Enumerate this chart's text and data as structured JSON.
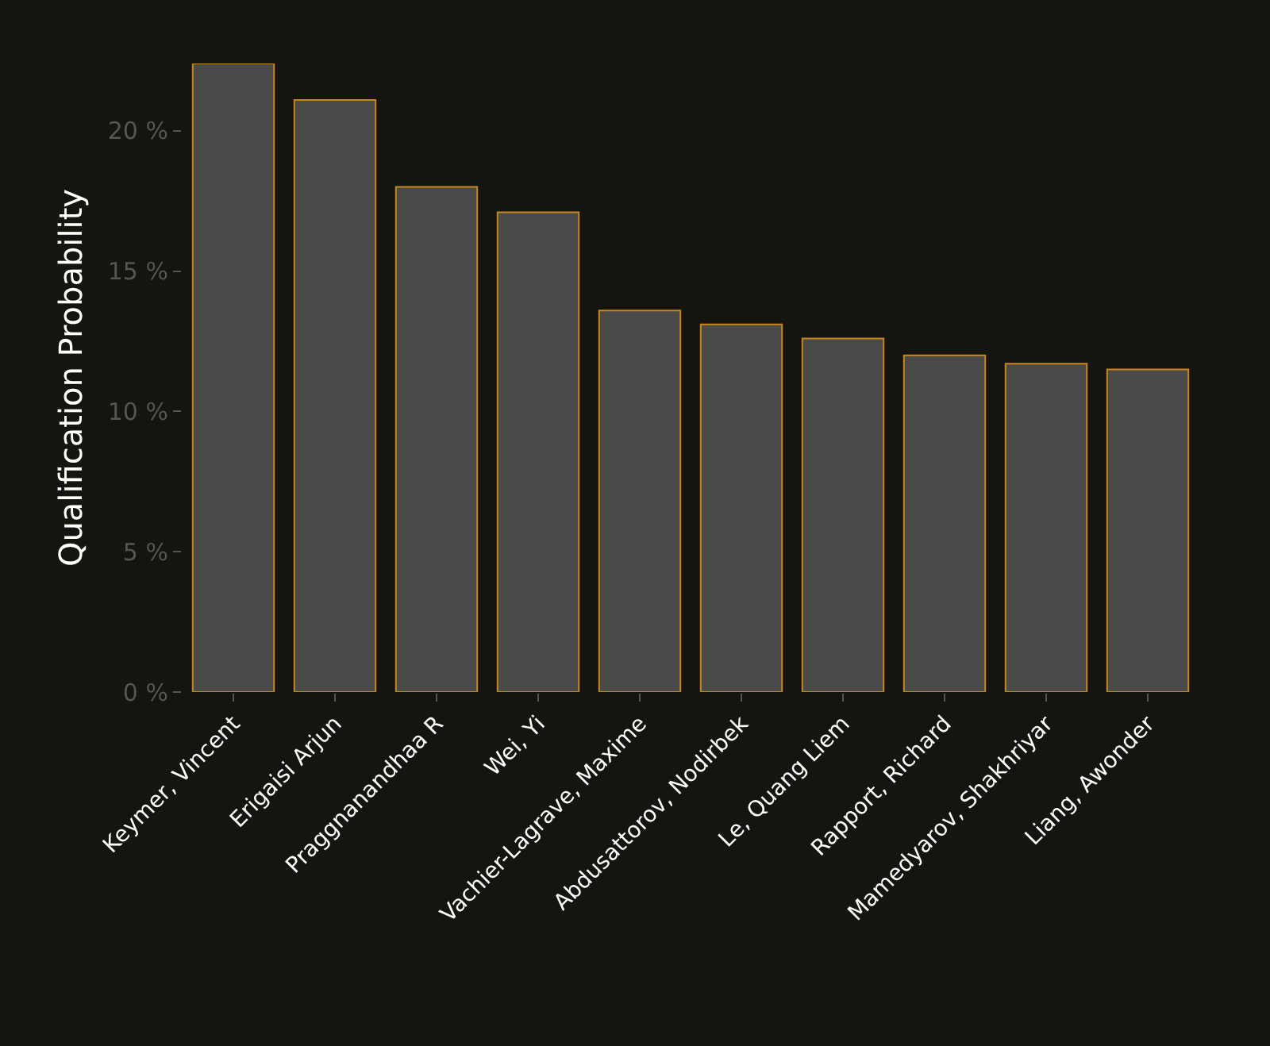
{
  "chart_data": {
    "type": "bar",
    "ylabel": "Qualification Probability",
    "categories": [
      "Keymer, Vincent",
      "Erigaisi Arjun",
      "Praggnanandhaa R",
      "Wei, Yi",
      "Vachier-Lagrave, Maxime",
      "Abdusattorov, Nodirbek",
      "Le, Quang Liem",
      "Rapport, Richard",
      "Mamedyarov, Shakhriyar",
      "Liang, Awonder"
    ],
    "values": [
      22.4,
      21.1,
      18.0,
      17.1,
      13.6,
      13.1,
      12.6,
      12.0,
      11.7,
      11.5
    ],
    "color": "#4a4a4a",
    "ylim": [
      0,
      22.4
    ],
    "yticks": [
      {
        "value": 0,
        "label": "0 %"
      },
      {
        "value": 5,
        "label": "5 %"
      },
      {
        "value": 10,
        "label": "10 %"
      },
      {
        "value": 15,
        "label": "15 %"
      },
      {
        "value": 20,
        "label": "20 %"
      }
    ],
    "grid": false
  }
}
